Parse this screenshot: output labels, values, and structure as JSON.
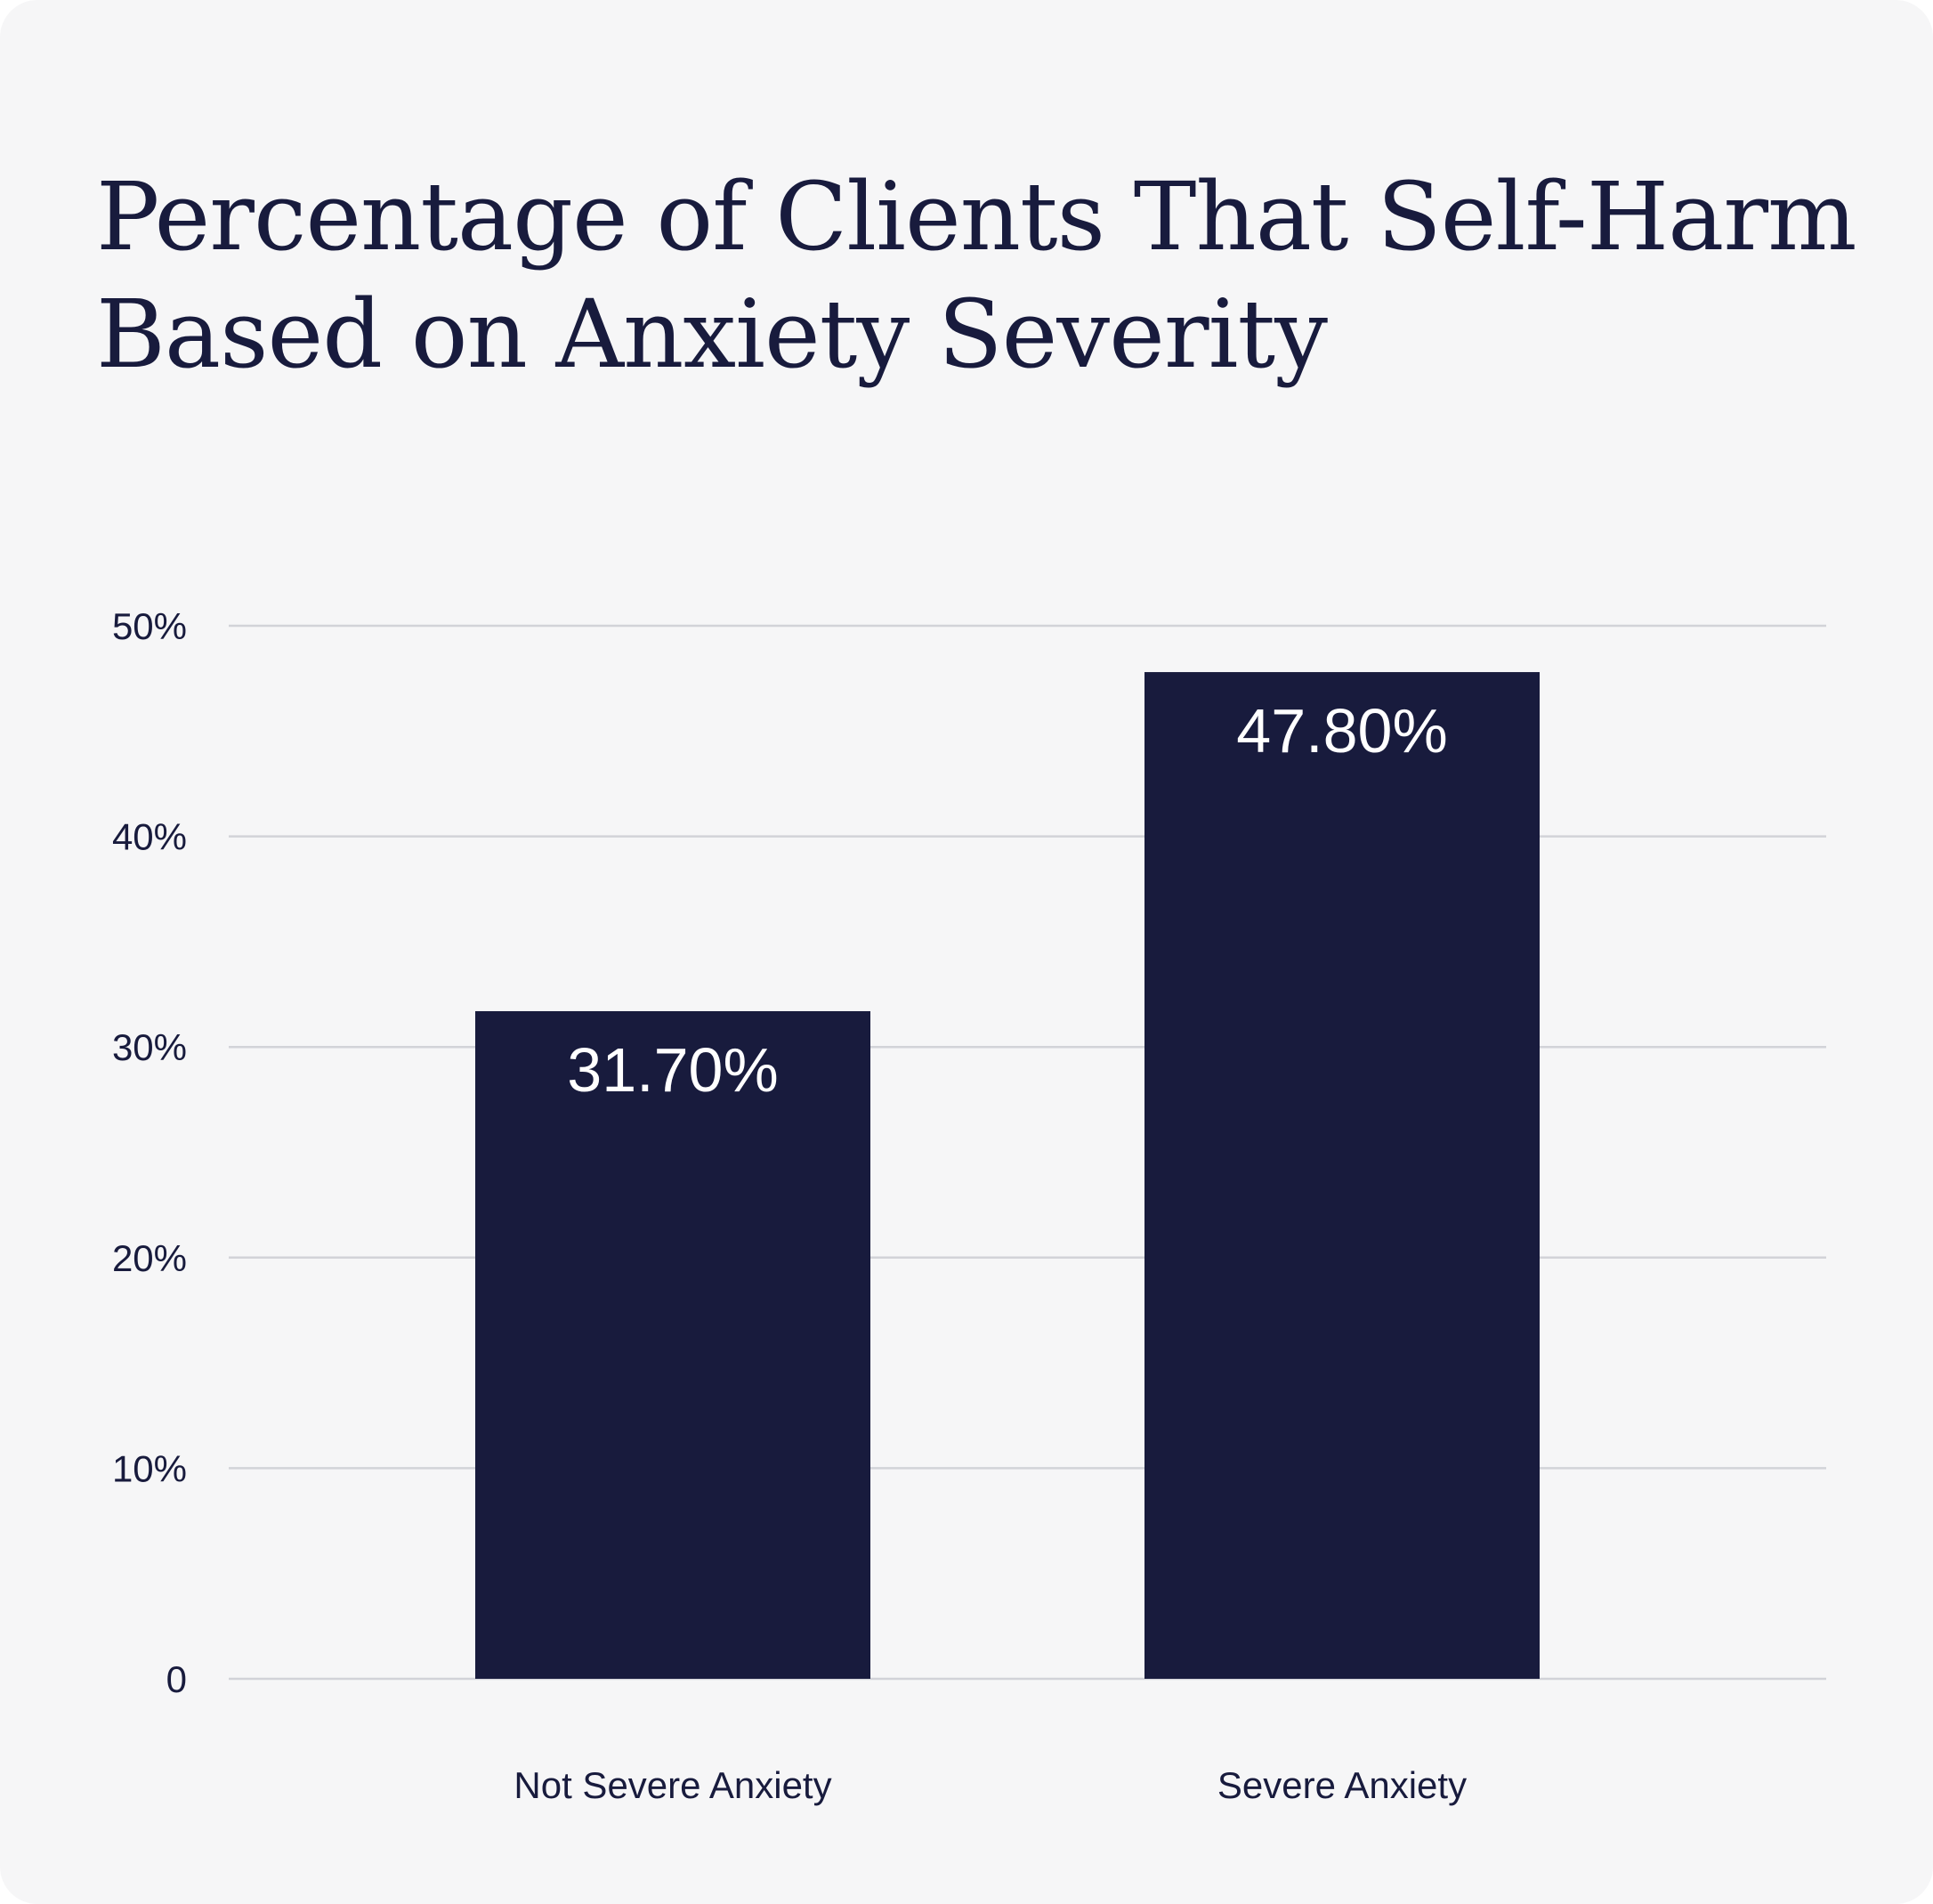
{
  "title_lines": [
    "Percentage of Clients That Self-Harm",
    "Based on Anxiety Severity"
  ],
  "colors": {
    "background": "#f6f6f7",
    "bar": "#181b3d",
    "text": "#181b3d",
    "grid": "#d2d3d8",
    "bar_label": "#ffffff"
  },
  "chart_data": {
    "type": "bar",
    "title": "Percentage of Clients That Self-Harm Based on Anxiety Severity",
    "categories": [
      "Not Severe Anxiety",
      "Severe Anxiety"
    ],
    "values": [
      31.7,
      47.8
    ],
    "data_labels": [
      "31.70%",
      "47.80%"
    ],
    "xlabel": "",
    "ylabel": "",
    "ylim": [
      0,
      50
    ],
    "yticks": [
      0,
      10,
      20,
      30,
      40,
      50
    ],
    "ytick_labels": [
      "0",
      "10%",
      "20%",
      "30%",
      "40%",
      "50%"
    ],
    "grid": true,
    "legend": "none"
  }
}
